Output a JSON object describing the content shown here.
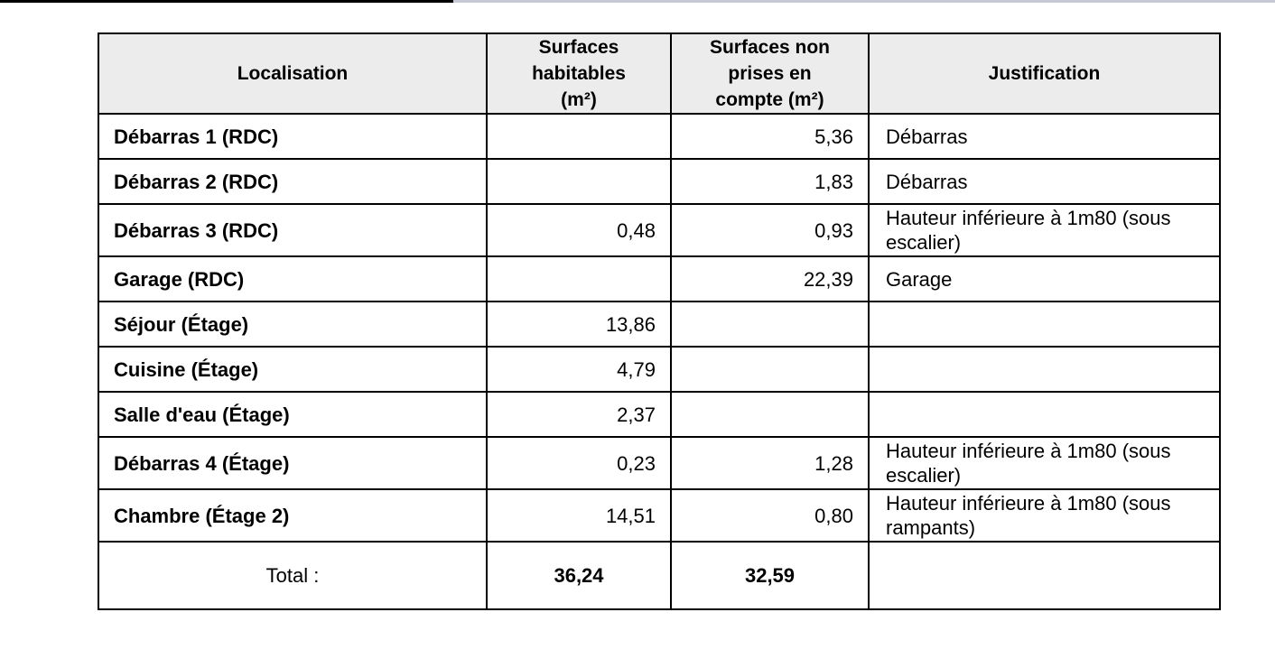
{
  "table": {
    "header": [
      "Localisation",
      "Surfaces habitables (m²)",
      "Surfaces non prises en compte (m²)",
      "Justification"
    ],
    "rows": [
      [
        "Débarras 1 (RDC)",
        null,
        "5,36",
        "Débarras"
      ],
      [
        "Débarras 2 (RDC)",
        null,
        "1,83",
        "Débarras"
      ],
      [
        "Débarras 3 (RDC)",
        "0,48",
        "0,93",
        "Hauteur inférieure à 1m80 (sous escalier)"
      ],
      [
        "Garage (RDC)",
        null,
        "22,39",
        "Garage"
      ],
      [
        "Séjour (Étage)",
        "13,86",
        null,
        null
      ],
      [
        "Cuisine (Étage)",
        "4,79",
        null,
        null
      ],
      [
        "Salle d'eau (Étage)",
        "2,37",
        null,
        null
      ],
      [
        "Débarras 4 (Étage)",
        "0,23",
        "1,28",
        "Hauteur inférieure à 1m80 (sous escalier)"
      ],
      [
        "Chambre (Étage 2)",
        "14,51",
        "0,80",
        "Hauteur inférieure à 1m80 (sous rampants)"
      ]
    ],
    "total": [
      "Total :",
      "36,24",
      "32,59",
      null
    ]
  }
}
